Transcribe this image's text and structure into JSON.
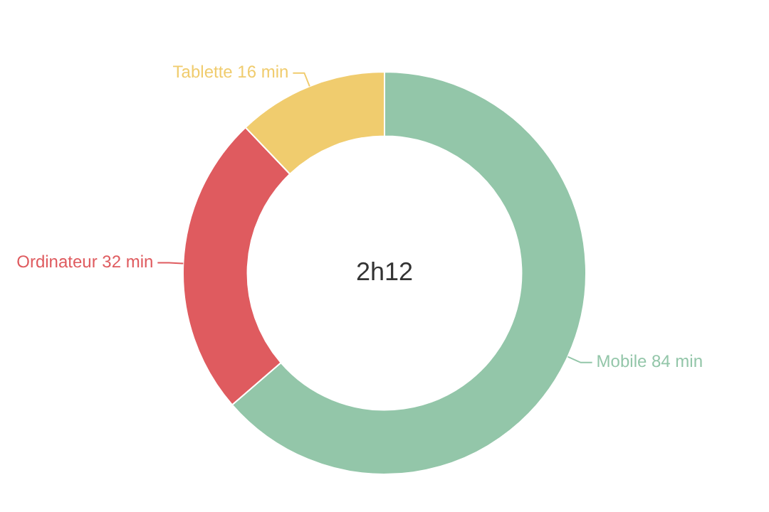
{
  "chart_data": {
    "type": "donut",
    "categories": [
      "Mobile",
      "Ordinateur",
      "Tablette"
    ],
    "values": [
      84,
      32,
      16
    ],
    "value_labels": [
      "84 min",
      "32 min",
      "16 min"
    ],
    "colors": [
      "#93c6a9",
      "#df5b5f",
      "#f0cc6e"
    ],
    "annotations": [
      "2h12"
    ],
    "legend": false
  }
}
